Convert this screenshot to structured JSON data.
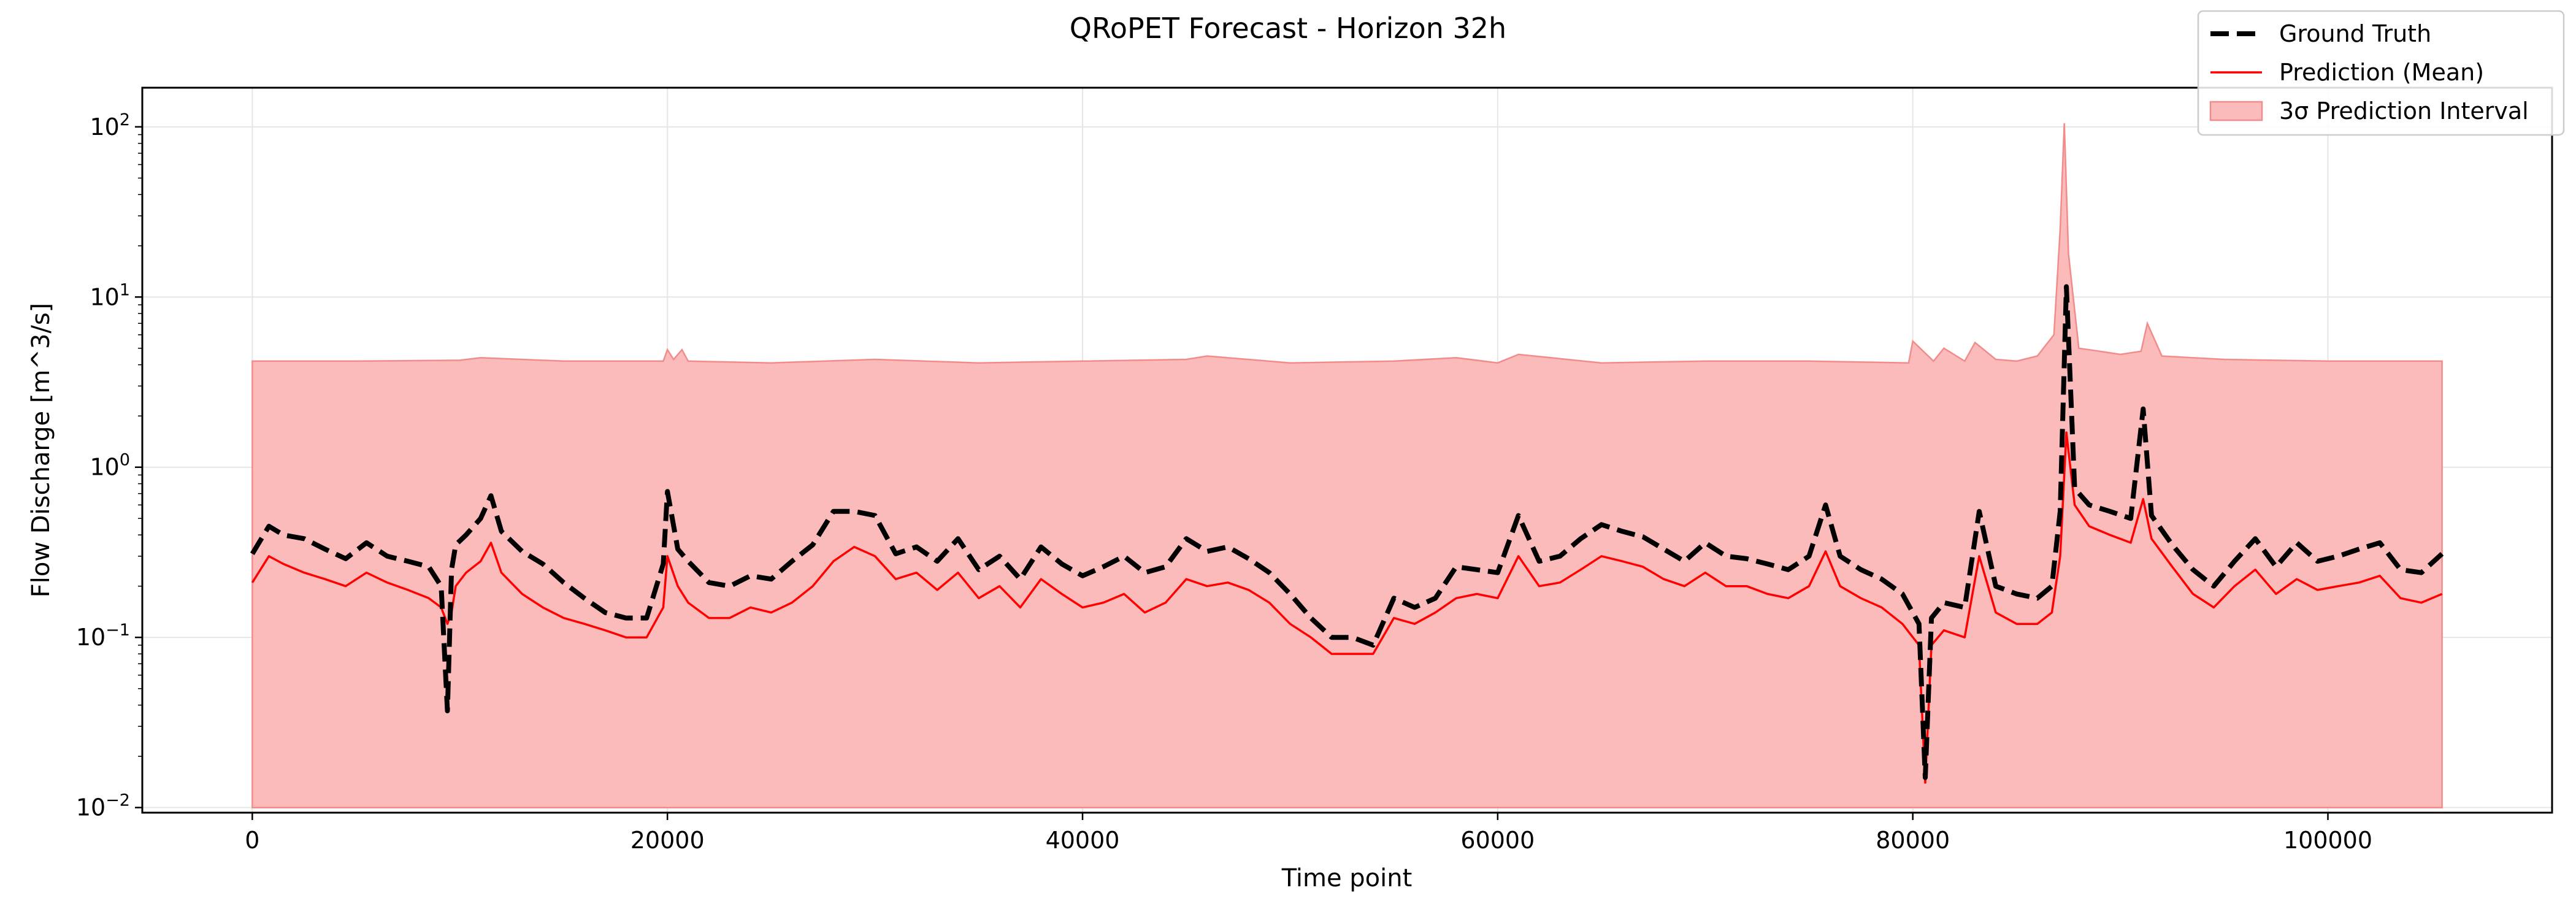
{
  "chart_data": {
    "type": "line",
    "title": "QRoPET Forecast - Horizon 32h",
    "xlabel": "Time point",
    "ylabel": "Flow Discharge [m^3/s]",
    "xlim": [
      -5300,
      110800
    ],
    "ylim_log10": [
      -2.03,
      2.23
    ],
    "yscale": "log",
    "grid": true,
    "x_ticks": [
      0,
      20000,
      40000,
      60000,
      80000,
      100000
    ],
    "x_tick_labels": [
      "0",
      "20000",
      "40000",
      "60000",
      "80000",
      "100000"
    ],
    "y_ticks_log10": [
      -2,
      -1,
      0,
      1,
      2
    ],
    "y_tick_base": "10",
    "y_tick_exponents": [
      "−2",
      "−1",
      "0",
      "1",
      "2"
    ],
    "legend": {
      "position": "top-right",
      "entries": [
        "Ground Truth",
        "Prediction (Mean)",
        "3σ Prediction Interval"
      ]
    },
    "colors": {
      "ground_truth": "#000000",
      "prediction": "#ff0000",
      "interval_fill": "#fbbbbb",
      "interval_edge": "#f28b8b",
      "grid": "#e6e6e6"
    },
    "series": [
      {
        "name": "Ground Truth",
        "style": "dashed",
        "x": [
          0,
          800,
          1500,
          2500,
          3500,
          4500,
          5500,
          6500,
          7500,
          8500,
          9100,
          9400,
          9600,
          9800,
          10300,
          11000,
          11500,
          12000,
          13000,
          14000,
          15000,
          16000,
          17000,
          18000,
          19000,
          19800,
          20000,
          20500,
          21000,
          22000,
          23000,
          24000,
          25000,
          26000,
          27000,
          28000,
          29000,
          30000,
          31000,
          32000,
          33000,
          34000,
          35000,
          36000,
          37000,
          38000,
          39000,
          40000,
          41000,
          42000,
          43000,
          44000,
          45000,
          46000,
          47000,
          48000,
          49000,
          50000,
          51000,
          52000,
          53000,
          54000,
          55000,
          56000,
          57000,
          58000,
          59000,
          60000,
          61000,
          62000,
          63000,
          64000,
          65000,
          66000,
          67000,
          68000,
          69000,
          70000,
          71000,
          72000,
          73000,
          74000,
          75000,
          75800,
          76500,
          77500,
          78500,
          79500,
          80300,
          80600,
          80900,
          81500,
          82500,
          83200,
          84000,
          85000,
          86000,
          86700,
          87100,
          87400,
          87800,
          88500,
          89500,
          90500,
          91100,
          91500,
          92500,
          93500,
          94500,
          95500,
          96500,
          97500,
          98500,
          99500,
          100500,
          101500,
          102500,
          103500,
          104500,
          105500
        ],
        "y": [
          0.31,
          0.45,
          0.4,
          0.38,
          0.33,
          0.29,
          0.36,
          0.3,
          0.28,
          0.26,
          0.2,
          0.037,
          0.25,
          0.35,
          0.4,
          0.5,
          0.68,
          0.42,
          0.32,
          0.27,
          0.21,
          0.17,
          0.14,
          0.13,
          0.13,
          0.27,
          0.72,
          0.33,
          0.28,
          0.21,
          0.2,
          0.23,
          0.22,
          0.28,
          0.35,
          0.55,
          0.55,
          0.52,
          0.31,
          0.34,
          0.28,
          0.38,
          0.25,
          0.3,
          0.22,
          0.34,
          0.27,
          0.23,
          0.26,
          0.3,
          0.24,
          0.26,
          0.38,
          0.32,
          0.34,
          0.29,
          0.24,
          0.18,
          0.13,
          0.1,
          0.1,
          0.09,
          0.17,
          0.15,
          0.17,
          0.26,
          0.25,
          0.24,
          0.52,
          0.28,
          0.3,
          0.38,
          0.46,
          0.42,
          0.39,
          0.33,
          0.28,
          0.36,
          0.3,
          0.29,
          0.27,
          0.25,
          0.3,
          0.6,
          0.3,
          0.25,
          0.22,
          0.18,
          0.12,
          0.015,
          0.13,
          0.16,
          0.15,
          0.55,
          0.2,
          0.18,
          0.17,
          0.2,
          0.55,
          11.5,
          0.75,
          0.6,
          0.55,
          0.5,
          2.2,
          0.52,
          0.35,
          0.25,
          0.2,
          0.28,
          0.38,
          0.26,
          0.36,
          0.28,
          0.3,
          0.33,
          0.36,
          0.25,
          0.24,
          0.31
        ]
      },
      {
        "name": "Prediction (Mean)",
        "style": "solid",
        "x": [
          0,
          800,
          1500,
          2500,
          3500,
          4500,
          5500,
          6500,
          7500,
          8500,
          9100,
          9400,
          9600,
          9800,
          10300,
          11000,
          11500,
          12000,
          13000,
          14000,
          15000,
          16000,
          17000,
          18000,
          19000,
          19800,
          20000,
          20500,
          21000,
          22000,
          23000,
          24000,
          25000,
          26000,
          27000,
          28000,
          29000,
          30000,
          31000,
          32000,
          33000,
          34000,
          35000,
          36000,
          37000,
          38000,
          39000,
          40000,
          41000,
          42000,
          43000,
          44000,
          45000,
          46000,
          47000,
          48000,
          49000,
          50000,
          51000,
          52000,
          53000,
          54000,
          55000,
          56000,
          57000,
          58000,
          59000,
          60000,
          61000,
          62000,
          63000,
          64000,
          65000,
          66000,
          67000,
          68000,
          69000,
          70000,
          71000,
          72000,
          73000,
          74000,
          75000,
          75800,
          76500,
          77500,
          78500,
          79500,
          80300,
          80600,
          80900,
          81500,
          82500,
          83200,
          84000,
          85000,
          86000,
          86700,
          87100,
          87400,
          87800,
          88500,
          89500,
          90500,
          91100,
          91500,
          92500,
          93500,
          94500,
          95500,
          96500,
          97500,
          98500,
          99500,
          100500,
          101500,
          102500,
          103500,
          104500,
          105500
        ],
        "y": [
          0.21,
          0.3,
          0.27,
          0.24,
          0.22,
          0.2,
          0.24,
          0.21,
          0.19,
          0.17,
          0.15,
          0.12,
          0.14,
          0.2,
          0.24,
          0.28,
          0.36,
          0.24,
          0.18,
          0.15,
          0.13,
          0.12,
          0.11,
          0.1,
          0.1,
          0.15,
          0.3,
          0.2,
          0.16,
          0.13,
          0.13,
          0.15,
          0.14,
          0.16,
          0.2,
          0.28,
          0.34,
          0.3,
          0.22,
          0.24,
          0.19,
          0.24,
          0.17,
          0.2,
          0.15,
          0.22,
          0.18,
          0.15,
          0.16,
          0.18,
          0.14,
          0.16,
          0.22,
          0.2,
          0.21,
          0.19,
          0.16,
          0.12,
          0.1,
          0.08,
          0.08,
          0.08,
          0.13,
          0.12,
          0.14,
          0.17,
          0.18,
          0.17,
          0.3,
          0.2,
          0.21,
          0.25,
          0.3,
          0.28,
          0.26,
          0.22,
          0.2,
          0.24,
          0.2,
          0.2,
          0.18,
          0.17,
          0.2,
          0.32,
          0.2,
          0.17,
          0.15,
          0.12,
          0.09,
          0.014,
          0.09,
          0.11,
          0.1,
          0.3,
          0.14,
          0.12,
          0.12,
          0.14,
          0.3,
          1.6,
          0.6,
          0.45,
          0.4,
          0.36,
          0.65,
          0.38,
          0.26,
          0.18,
          0.15,
          0.2,
          0.25,
          0.18,
          0.22,
          0.19,
          0.2,
          0.21,
          0.23,
          0.17,
          0.16,
          0.18
        ]
      },
      {
        "name": "3σ Prediction Interval",
        "style": "band",
        "x": [
          0,
          5000,
          10000,
          11000,
          15000,
          19800,
          20000,
          20300,
          20700,
          21000,
          25000,
          30000,
          35000,
          40000,
          45000,
          46000,
          50000,
          55000,
          58000,
          60000,
          61000,
          65000,
          70000,
          75000,
          79800,
          80000,
          81000,
          81500,
          82500,
          83000,
          84000,
          85000,
          86000,
          86800,
          87100,
          87300,
          87500,
          88000,
          89000,
          90000,
          91000,
          91300,
          92000,
          95000,
          100000,
          105500
        ],
        "upper": [
          4.2,
          4.2,
          4.25,
          4.4,
          4.2,
          4.2,
          4.9,
          4.3,
          4.9,
          4.2,
          4.1,
          4.3,
          4.1,
          4.2,
          4.3,
          4.5,
          4.1,
          4.2,
          4.4,
          4.1,
          4.6,
          4.1,
          4.2,
          4.2,
          4.1,
          5.5,
          4.2,
          5.0,
          4.2,
          5.4,
          4.3,
          4.2,
          4.5,
          6.0,
          25.0,
          105.0,
          18.0,
          5.0,
          4.8,
          4.6,
          4.8,
          7.0,
          4.5,
          4.3,
          4.2,
          4.2
        ],
        "lower": 0.01
      }
    ]
  }
}
